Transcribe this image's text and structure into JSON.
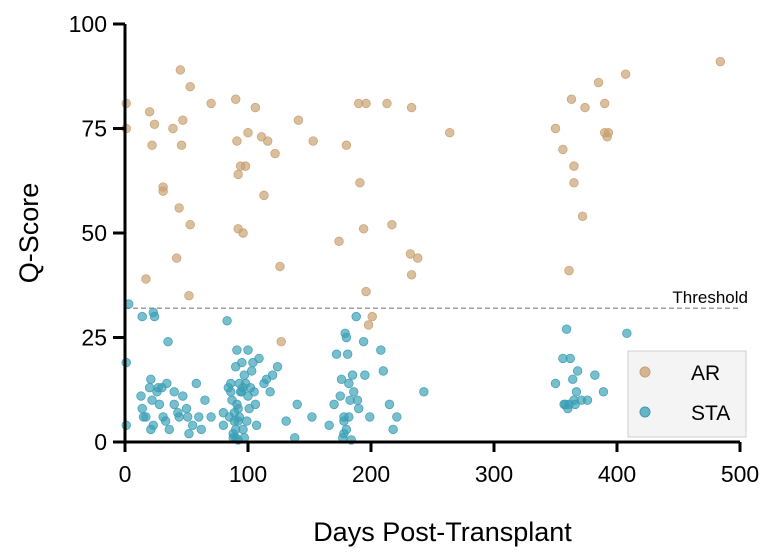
{
  "chart_data": {
    "type": "scatter",
    "xlabel": "Days Post-Transplant",
    "ylabel": "Q-Score",
    "xlim": [
      0,
      500
    ],
    "ylim": [
      0,
      100
    ],
    "xticks": [
      "0",
      "100",
      "200",
      "300",
      "400",
      "500"
    ],
    "yticks": [
      "0",
      "25",
      "50",
      "75",
      "100"
    ],
    "grid": false,
    "legend_position": "bottom-right",
    "threshold": {
      "label": "Threshold",
      "value": 32,
      "color": "#9e9e9e"
    },
    "series": [
      {
        "name": "AR",
        "color": "#c8a070",
        "points": [
          [
            1,
            81
          ],
          [
            1,
            75
          ],
          [
            17,
            39
          ],
          [
            20,
            79
          ],
          [
            22,
            71
          ],
          [
            24,
            76
          ],
          [
            31,
            61
          ],
          [
            31,
            60
          ],
          [
            39,
            75
          ],
          [
            42,
            44
          ],
          [
            44,
            56
          ],
          [
            45,
            89
          ],
          [
            46,
            71
          ],
          [
            47,
            77
          ],
          [
            52,
            35
          ],
          [
            53,
            85
          ],
          [
            53,
            52
          ],
          [
            70,
            81
          ],
          [
            90,
            82
          ],
          [
            91,
            72
          ],
          [
            92,
            64
          ],
          [
            92,
            51
          ],
          [
            94,
            66
          ],
          [
            96,
            50
          ],
          [
            98,
            66
          ],
          [
            100,
            74
          ],
          [
            106,
            80
          ],
          [
            111,
            73
          ],
          [
            113,
            59
          ],
          [
            116,
            72
          ],
          [
            122,
            69
          ],
          [
            126,
            42
          ],
          [
            127,
            24
          ],
          [
            141,
            77
          ],
          [
            153,
            72
          ],
          [
            174,
            48
          ],
          [
            180,
            71
          ],
          [
            190,
            81
          ],
          [
            191,
            62
          ],
          [
            194,
            51
          ],
          [
            196,
            36
          ],
          [
            196,
            81
          ],
          [
            198,
            28
          ],
          [
            201,
            30
          ],
          [
            213,
            81
          ],
          [
            217,
            52
          ],
          [
            232,
            45
          ],
          [
            233,
            40
          ],
          [
            233,
            80
          ],
          [
            238,
            44
          ],
          [
            264,
            74
          ],
          [
            350,
            75
          ],
          [
            356,
            70
          ],
          [
            361,
            41
          ],
          [
            363,
            82
          ],
          [
            365,
            66
          ],
          [
            365,
            62
          ],
          [
            372,
            54
          ],
          [
            374,
            80
          ],
          [
            385,
            86
          ],
          [
            390,
            74
          ],
          [
            390,
            81
          ],
          [
            392,
            73
          ],
          [
            393,
            74
          ],
          [
            407,
            88
          ],
          [
            484,
            91
          ]
        ]
      },
      {
        "name": "STA",
        "color": "#3a9fb5",
        "points": [
          [
            1,
            19
          ],
          [
            3,
            33
          ],
          [
            1,
            4
          ],
          [
            13,
            11
          ],
          [
            14,
            8
          ],
          [
            15,
            6
          ],
          [
            14,
            30
          ],
          [
            17,
            6
          ],
          [
            20,
            13
          ],
          [
            22,
            10
          ],
          [
            21,
            3
          ],
          [
            23,
            4
          ],
          [
            21,
            15
          ],
          [
            23,
            31
          ],
          [
            24,
            30
          ],
          [
            26,
            12
          ],
          [
            27,
            13
          ],
          [
            28,
            9
          ],
          [
            30,
            13
          ],
          [
            31,
            6
          ],
          [
            33,
            5
          ],
          [
            34,
            14
          ],
          [
            35,
            24
          ],
          [
            36,
            3
          ],
          [
            40,
            9
          ],
          [
            40,
            12
          ],
          [
            43,
            7
          ],
          [
            44,
            6
          ],
          [
            47,
            11
          ],
          [
            50,
            8
          ],
          [
            51,
            6
          ],
          [
            52,
            2
          ],
          [
            55,
            4
          ],
          [
            58,
            14
          ],
          [
            60,
            6
          ],
          [
            62,
            3
          ],
          [
            65,
            10
          ],
          [
            70,
            6
          ],
          [
            80,
            7
          ],
          [
            80,
            4
          ],
          [
            83,
            29
          ],
          [
            84,
            13
          ],
          [
            85,
            6
          ],
          [
            86,
            12
          ],
          [
            86,
            14
          ],
          [
            87,
            10
          ],
          [
            88,
            2
          ],
          [
            88,
            1
          ],
          [
            89,
            5
          ],
          [
            89,
            7
          ],
          [
            90,
            18
          ],
          [
            90,
            3
          ],
          [
            90,
            1
          ],
          [
            91,
            9
          ],
          [
            91,
            22
          ],
          [
            92,
            8
          ],
          [
            92,
            5
          ],
          [
            92,
            0.5
          ],
          [
            93,
            14
          ],
          [
            93,
            6
          ],
          [
            94,
            12
          ],
          [
            95,
            19
          ],
          [
            95,
            12
          ],
          [
            96,
            13
          ],
          [
            96,
            3
          ],
          [
            97,
            16
          ],
          [
            97,
            1
          ],
          [
            98,
            14
          ],
          [
            99,
            5
          ],
          [
            100,
            22
          ],
          [
            100,
            11
          ],
          [
            101,
            8
          ],
          [
            102,
            13
          ],
          [
            103,
            17
          ],
          [
            104,
            19
          ],
          [
            105,
            12
          ],
          [
            106,
            9
          ],
          [
            107,
            4
          ],
          [
            109,
            20
          ],
          [
            113,
            14
          ],
          [
            115,
            15
          ],
          [
            118,
            12
          ],
          [
            120,
            16
          ],
          [
            124,
            18
          ],
          [
            131,
            5
          ],
          [
            138,
            1
          ],
          [
            140,
            9
          ],
          [
            152,
            6
          ],
          [
            166,
            4
          ],
          [
            170,
            9
          ],
          [
            172,
            21
          ],
          [
            175,
            11
          ],
          [
            176,
            15
          ],
          [
            177,
            1
          ],
          [
            178,
            2
          ],
          [
            178,
            5
          ],
          [
            178,
            6
          ],
          [
            179,
            26
          ],
          [
            180,
            25
          ],
          [
            180,
            3
          ],
          [
            181,
            21
          ],
          [
            182,
            14
          ],
          [
            182,
            6
          ],
          [
            183,
            10
          ],
          [
            184,
            0.5
          ],
          [
            185,
            16
          ],
          [
            186,
            12
          ],
          [
            188,
            30
          ],
          [
            189,
            10
          ],
          [
            190,
            8
          ],
          [
            194,
            24
          ],
          [
            195,
            16
          ],
          [
            199,
            6
          ],
          [
            208,
            22
          ],
          [
            210,
            17
          ],
          [
            215,
            9
          ],
          [
            218,
            3
          ],
          [
            221,
            6
          ],
          [
            243,
            12
          ],
          [
            350,
            14
          ],
          [
            356,
            20
          ],
          [
            357,
            9
          ],
          [
            358,
            9
          ],
          [
            359,
            27
          ],
          [
            360,
            8
          ],
          [
            361,
            9
          ],
          [
            362,
            20
          ],
          [
            364,
            15
          ],
          [
            365,
            10
          ],
          [
            366,
            9
          ],
          [
            367,
            12
          ],
          [
            368,
            17
          ],
          [
            371,
            10
          ],
          [
            376,
            10
          ],
          [
            382,
            16
          ],
          [
            389,
            12
          ],
          [
            408,
            26
          ]
        ]
      }
    ]
  }
}
